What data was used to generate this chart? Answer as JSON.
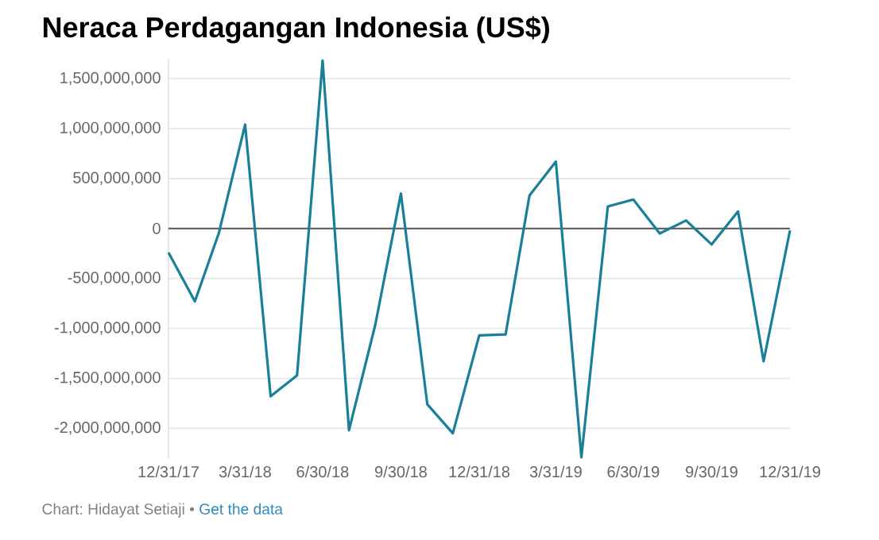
{
  "chart_data": {
    "type": "line",
    "title": "Neraca Perdagangan Indonesia (US$)",
    "x": [
      "2017-12-31",
      "2018-01-31",
      "2018-02-28",
      "2018-03-31",
      "2018-04-30",
      "2018-05-31",
      "2018-06-30",
      "2018-07-31",
      "2018-08-31",
      "2018-09-30",
      "2018-10-31",
      "2018-11-30",
      "2018-12-31",
      "2019-01-31",
      "2019-02-28",
      "2019-03-31",
      "2019-04-30",
      "2019-05-31",
      "2019-06-30",
      "2019-07-31",
      "2019-08-31",
      "2019-09-30",
      "2019-10-31",
      "2019-11-30",
      "2019-12-31"
    ],
    "series": [
      {
        "color": "#1a7f99",
        "values": [
          -240000000,
          -730000000,
          -50000000,
          1040000000,
          -1680000000,
          -1470000000,
          1680000000,
          -2020000000,
          -960000000,
          350000000,
          -1760000000,
          -2050000000,
          -1070000000,
          -1060000000,
          330000000,
          670000000,
          -2290000000,
          220000000,
          290000000,
          -50000000,
          80000000,
          -160000000,
          170000000,
          -1330000000,
          -20000000
        ]
      }
    ],
    "xlim": [
      "2017-12-31",
      "2019-12-31"
    ],
    "xticks": [
      {
        "value": "2017-12-31",
        "label": "12/31/17"
      },
      {
        "value": "2018-03-31",
        "label": "3/31/18"
      },
      {
        "value": "2018-06-30",
        "label": "6/30/18"
      },
      {
        "value": "2018-09-30",
        "label": "9/30/18"
      },
      {
        "value": "2018-12-31",
        "label": "12/31/18"
      },
      {
        "value": "2019-03-31",
        "label": "3/31/19"
      },
      {
        "value": "2019-06-30",
        "label": "6/30/19"
      },
      {
        "value": "2019-09-30",
        "label": "9/30/19"
      },
      {
        "value": "2019-12-31",
        "label": "12/31/19"
      }
    ],
    "yticks": [
      {
        "value": 1500000000,
        "label": "1,500,000,000"
      },
      {
        "value": 1000000000,
        "label": "1,000,000,000"
      },
      {
        "value": 500000000,
        "label": "500,000,000"
      },
      {
        "value": 0,
        "label": "0"
      },
      {
        "value": -500000000,
        "label": "-500,000,000"
      },
      {
        "value": -1000000000,
        "label": "-1,000,000,000"
      },
      {
        "value": -1500000000,
        "label": "-1,500,000,000"
      },
      {
        "value": -2000000000,
        "label": "-2,000,000,000"
      }
    ],
    "ylim": [
      -2300000000,
      1700000000
    ],
    "grid": "y",
    "ref_lines": [
      {
        "axis": "y",
        "value": 0,
        "color": "#555555"
      }
    ],
    "annotations": [
      "Chart: Hidayat Setiaji •",
      "Get the data"
    ]
  }
}
